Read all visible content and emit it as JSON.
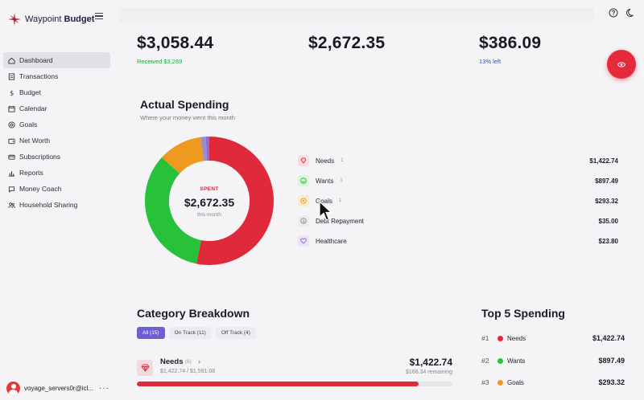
{
  "app": {
    "brand_light": "Waypoint",
    "brand_bold": "Budget"
  },
  "nav": {
    "items": [
      {
        "label": "Dashboard",
        "icon": "home-icon",
        "active": true
      },
      {
        "label": "Transactions",
        "icon": "receipt-icon"
      },
      {
        "label": "Budget",
        "icon": "dollar-icon"
      },
      {
        "label": "Calendar",
        "icon": "calendar-icon"
      },
      {
        "label": "Goals",
        "icon": "target-icon"
      },
      {
        "label": "Net Worth",
        "icon": "wallet-icon"
      },
      {
        "label": "Subscriptions",
        "icon": "card-icon"
      },
      {
        "label": "Reports",
        "icon": "bar-chart-icon"
      },
      {
        "label": "Money Coach",
        "icon": "chat-icon"
      },
      {
        "label": "Household Sharing",
        "icon": "users-icon"
      }
    ]
  },
  "user": {
    "name": "voyage_servers0r@icl..."
  },
  "stats": {
    "income": {
      "value": "$3,058.44",
      "sub": "Received $3,269"
    },
    "spent": {
      "value": "$2,672.35"
    },
    "left": {
      "value": "$386.09",
      "sub": "13% left"
    }
  },
  "actual_spending": {
    "title": "Actual Spending",
    "subtitle": "Where your money went this month",
    "center_label": "SPENT",
    "center_value": "$2,672.35",
    "center_sub": "this month"
  },
  "chart_data": {
    "type": "pie",
    "total": 2672.35,
    "slices": [
      {
        "name": "Needs",
        "value": 1422.74,
        "color": "#e02a3c"
      },
      {
        "name": "Wants",
        "value": 897.49,
        "color": "#27c23a"
      },
      {
        "name": "Goals",
        "value": 293.32,
        "color": "#ef9a1e"
      },
      {
        "name": "Debt Repayment",
        "value": 35.0,
        "color": "#9b8dc7"
      },
      {
        "name": "Healthcare",
        "value": 23.8,
        "color": "#8a6fd0"
      }
    ]
  },
  "legend": [
    {
      "name": "Needs",
      "count": "1",
      "amount": "$1,422.74",
      "icon": "diamond-icon",
      "bg": "#f7dde0",
      "fg": "#e02a3c"
    },
    {
      "name": "Wants",
      "count": "1",
      "amount": "$897.49",
      "icon": "smile-icon",
      "bg": "#dcf3dc",
      "fg": "#27b13a"
    },
    {
      "name": "Goals",
      "count": "1",
      "amount": "$293.32",
      "icon": "target-icon",
      "bg": "#fbead0",
      "fg": "#ef9a1e"
    },
    {
      "name": "Debt Repayment",
      "count": "",
      "amount": "$35.00",
      "icon": "dollar-circle-icon",
      "bg": "#ececef",
      "fg": "#888"
    },
    {
      "name": "Healthcare",
      "count": "",
      "amount": "$23.80",
      "icon": "heart-icon",
      "bg": "#ebe4f7",
      "fg": "#8a6fd0"
    }
  ],
  "category_breakdown": {
    "title": "Category Breakdown",
    "filters": [
      {
        "label": "All (15)",
        "active": true
      },
      {
        "label": "On Track (11)"
      },
      {
        "label": "Off Track (4)"
      }
    ],
    "row": {
      "name": "Needs",
      "count": "(6)",
      "sub": "$1,422.74 / $1,591.08",
      "amount": "$1,422.74",
      "remaining": "$168.34 remaining",
      "progress": 0.894
    }
  },
  "top5": {
    "title": "Top 5 Spending",
    "items": [
      {
        "rank": "#1",
        "name": "Needs",
        "amount": "$1,422.74",
        "color": "#e02a3c"
      },
      {
        "rank": "#2",
        "name": "Wants",
        "amount": "$897.49",
        "color": "#27c23a"
      },
      {
        "rank": "#3",
        "name": "Goals",
        "amount": "$293.32",
        "color": "#ef9a1e"
      }
    ]
  }
}
